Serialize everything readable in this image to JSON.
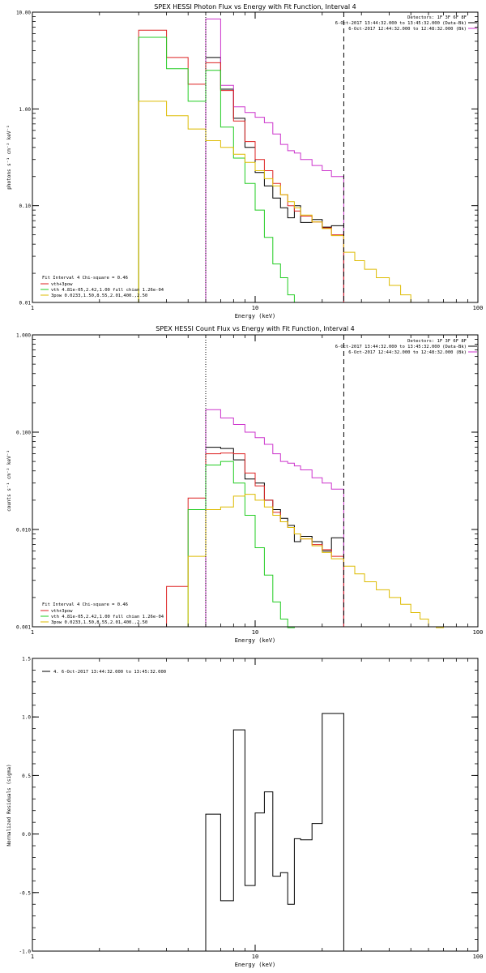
{
  "chart_data": [
    {
      "type": "line",
      "title": "SPEX HESSI Photon Flux vs Energy with Fit Function, Interval 4",
      "xlabel": "Energy (keV)",
      "ylabel": "photons s⁻¹ cm⁻² keV⁻¹",
      "xscale": "log",
      "yscale": "log",
      "xlim": [
        1,
        100
      ],
      "ylim": [
        0.01,
        10
      ],
      "x_tick_labels": [
        "1",
        "10",
        "100"
      ],
      "y_ticks": [
        0.01,
        0.1,
        1,
        10
      ],
      "y_tick_labels": [
        "0.01",
        "0.10",
        "1.00",
        "10.00"
      ],
      "vlines": [
        {
          "x": 6.0,
          "style": "dotted",
          "color": "#000000"
        },
        {
          "x": 25.0,
          "style": "dashed",
          "color": "#000000"
        }
      ],
      "legend_top_right": {
        "header": "Detectors: 1F 3F 6F 8F",
        "entries": [
          {
            "text": "6-Oct-2017 13:44:32.000 to 13:45:32.000 (Data-Bk)",
            "color": "#000000"
          },
          {
            "text": "6-Oct-2017 12:44:32.000 to 12:48:32.000 (Bk)",
            "color": "#cc33cc"
          }
        ]
      },
      "legend_bottom_left": {
        "header": "Fit Interval 4   Chi-square = 0.46",
        "entries": [
          {
            "text": "vth+3pow",
            "color": "#dd2222"
          },
          {
            "text": "vth 4.81e-05,2.42,1.00  full chian 1.26e-04",
            "color": "#22cc22"
          },
          {
            "text": "3pow 0.0233,1.50,8.55,2.01,400.,2.50",
            "color": "#ddbb00"
          }
        ]
      },
      "series": [
        {
          "name": "Data-Bk",
          "color": "#000000",
          "edges": [
            6,
            7,
            8,
            9,
            10,
            11,
            12,
            13,
            14,
            15,
            16,
            18,
            20,
            22,
            25
          ],
          "values": [
            3.4,
            1.6,
            0.8,
            0.4,
            0.22,
            0.16,
            0.12,
            0.095,
            0.075,
            0.1,
            0.067,
            0.072,
            0.06,
            0.062
          ]
        },
        {
          "name": "Bk",
          "color": "#cc33cc",
          "edges": [
            6,
            7,
            8,
            9,
            10,
            11,
            12,
            13,
            14,
            15,
            16,
            18,
            20,
            22,
            25
          ],
          "values": [
            8.5,
            1.75,
            1.05,
            0.92,
            0.82,
            0.72,
            0.55,
            0.43,
            0.37,
            0.35,
            0.3,
            0.26,
            0.23,
            0.2
          ]
        },
        {
          "name": "vth+3pow",
          "color": "#dd2222",
          "edges": [
            3,
            4,
            5,
            6,
            7,
            8,
            9,
            10,
            11,
            12,
            13,
            14,
            15,
            16,
            18,
            20,
            22,
            25
          ],
          "values": [
            6.5,
            3.4,
            1.8,
            3.0,
            1.55,
            0.75,
            0.46,
            0.3,
            0.23,
            0.17,
            0.13,
            0.1,
            0.088,
            0.078,
            0.068,
            0.059,
            0.05
          ]
        },
        {
          "name": "vth",
          "color": "#22cc22",
          "edges": [
            3,
            4,
            5,
            6,
            7,
            8,
            9,
            10,
            11,
            12,
            13,
            14,
            15,
            16
          ],
          "values": [
            5.5,
            2.6,
            1.2,
            2.5,
            0.65,
            0.31,
            0.17,
            0.09,
            0.047,
            0.025,
            0.018,
            0.012,
            0.01
          ]
        },
        {
          "name": "3pow",
          "color": "#ddbb00",
          "edges": [
            3,
            4,
            5,
            6,
            7,
            8,
            9,
            10,
            11,
            12,
            13,
            14,
            15,
            16,
            18,
            20,
            22,
            25,
            28,
            31,
            35,
            40,
            45,
            50
          ],
          "values": [
            1.2,
            0.85,
            0.62,
            0.47,
            0.4,
            0.34,
            0.28,
            0.23,
            0.19,
            0.16,
            0.13,
            0.11,
            0.095,
            0.08,
            0.068,
            0.058,
            0.049,
            0.033,
            0.027,
            0.022,
            0.018,
            0.015,
            0.012
          ]
        }
      ]
    },
    {
      "type": "line",
      "title": "SPEX HESSI Count Flux vs Energy with Fit Function, Interval 4",
      "xlabel": "Energy (keV)",
      "ylabel": "counts s⁻¹ cm⁻² keV⁻¹",
      "xscale": "log",
      "yscale": "log",
      "xlim": [
        1,
        100
      ],
      "ylim": [
        0.001,
        1
      ],
      "x_tick_labels": [
        "1",
        "10",
        "100"
      ],
      "y_ticks": [
        0.001,
        0.01,
        0.1,
        1
      ],
      "y_tick_labels": [
        "0.001",
        "0.010",
        "0.100",
        "1.000"
      ],
      "vlines": [
        {
          "x": 6.0,
          "style": "dotted",
          "color": "#000000"
        },
        {
          "x": 25.0,
          "style": "dashed",
          "color": "#000000"
        }
      ],
      "legend_top_right": {
        "header": "Detectors: 1F 3F 6F 8F",
        "entries": [
          {
            "text": "6-Oct-2017 13:44:32.000 to 13:45:32.000 (Data-Bk)",
            "color": "#000000"
          },
          {
            "text": "6-Oct-2017 12:44:32.000 to 12:48:32.000 (Bk)",
            "color": "#cc33cc"
          }
        ]
      },
      "legend_bottom_left": {
        "header": "Fit Interval 4   Chi-square = 0.46",
        "entries": [
          {
            "text": "vth+3pow",
            "color": "#dd2222"
          },
          {
            "text": "vth 4.81e-05,2.42,1.00  full chian 1.26e-04",
            "color": "#22cc22"
          },
          {
            "text": "3pow 0.0233,1.50,8.55,2.01,400.,2.50",
            "color": "#ddbb00"
          }
        ]
      },
      "series": [
        {
          "name": "Data-Bk",
          "color": "#000000",
          "edges": [
            6,
            7,
            8,
            9,
            10,
            11,
            12,
            13,
            14,
            15,
            16,
            18,
            20,
            22,
            25
          ],
          "values": [
            0.07,
            0.068,
            0.052,
            0.033,
            0.03,
            0.02,
            0.016,
            0.013,
            0.011,
            0.0075,
            0.0085,
            0.0075,
            0.006,
            0.0082
          ]
        },
        {
          "name": "Bk",
          "color": "#cc33cc",
          "edges": [
            6,
            7,
            8,
            9,
            10,
            11,
            12,
            13,
            14,
            15,
            16,
            18,
            20,
            22,
            25
          ],
          "values": [
            0.17,
            0.14,
            0.12,
            0.1,
            0.088,
            0.075,
            0.06,
            0.05,
            0.048,
            0.045,
            0.041,
            0.034,
            0.03,
            0.026
          ]
        },
        {
          "name": "vth+3pow",
          "color": "#dd2222",
          "edges": [
            4,
            5,
            6,
            7,
            8,
            9,
            10,
            11,
            12,
            13,
            14,
            15,
            16,
            18,
            20,
            22,
            25
          ],
          "values": [
            0.0026,
            0.021,
            0.06,
            0.061,
            0.06,
            0.038,
            0.028,
            0.02,
            0.015,
            0.012,
            0.0105,
            0.009,
            0.008,
            0.007,
            0.0062,
            0.0053
          ]
        },
        {
          "name": "vth",
          "color": "#22cc22",
          "edges": [
            5,
            6,
            7,
            8,
            9,
            10,
            11,
            12,
            13,
            14,
            15
          ],
          "values": [
            0.016,
            0.046,
            0.05,
            0.03,
            0.014,
            0.0065,
            0.0034,
            0.0018,
            0.0012,
            0.0007
          ]
        },
        {
          "name": "3pow",
          "color": "#ddbb00",
          "edges": [
            5,
            6,
            7,
            8,
            9,
            10,
            11,
            12,
            13,
            14,
            15,
            16,
            18,
            20,
            22,
            25,
            28,
            31,
            35,
            40,
            45,
            50,
            55,
            60,
            65,
            70
          ],
          "values": [
            0.0053,
            0.016,
            0.017,
            0.022,
            0.023,
            0.02,
            0.017,
            0.014,
            0.012,
            0.0105,
            0.009,
            0.008,
            0.0068,
            0.0058,
            0.005,
            0.0042,
            0.0035,
            0.0029,
            0.0024,
            0.002,
            0.0017,
            0.0014,
            0.0012,
            0.001,
            0.0009
          ]
        }
      ]
    },
    {
      "type": "line",
      "title": "",
      "xlabel": "Energy (keV)",
      "ylabel": "Normalized Residuals (sigma)",
      "xscale": "log",
      "yscale": "linear",
      "xlim": [
        1,
        100
      ],
      "ylim": [
        -1,
        1.5
      ],
      "x_tick_labels": [
        "1",
        "10",
        "100"
      ],
      "y_ticks": [
        -1,
        -0.5,
        0,
        0.5,
        1,
        1.5
      ],
      "y_tick_labels": [
        "-1.0",
        "-0.5",
        "0.0",
        "0.5",
        "1.0",
        "1.5"
      ],
      "legend_top_left": {
        "entries": [
          {
            "text": "4.  6-Oct-2017 13:44:32.000 to 13:45:32.000",
            "color": "#000000"
          }
        ]
      },
      "series": [
        {
          "name": "",
          "color": "#000000",
          "edges": [
            6,
            7,
            8,
            9,
            10,
            11,
            12,
            13,
            14,
            15,
            16,
            18,
            20,
            22,
            25
          ],
          "values": [
            0.17,
            -0.57,
            0.89,
            -0.44,
            0.18,
            0.36,
            -0.36,
            -0.33,
            -0.6,
            -0.04,
            -0.05,
            0.09,
            1.03,
            1.03
          ]
        }
      ]
    }
  ]
}
